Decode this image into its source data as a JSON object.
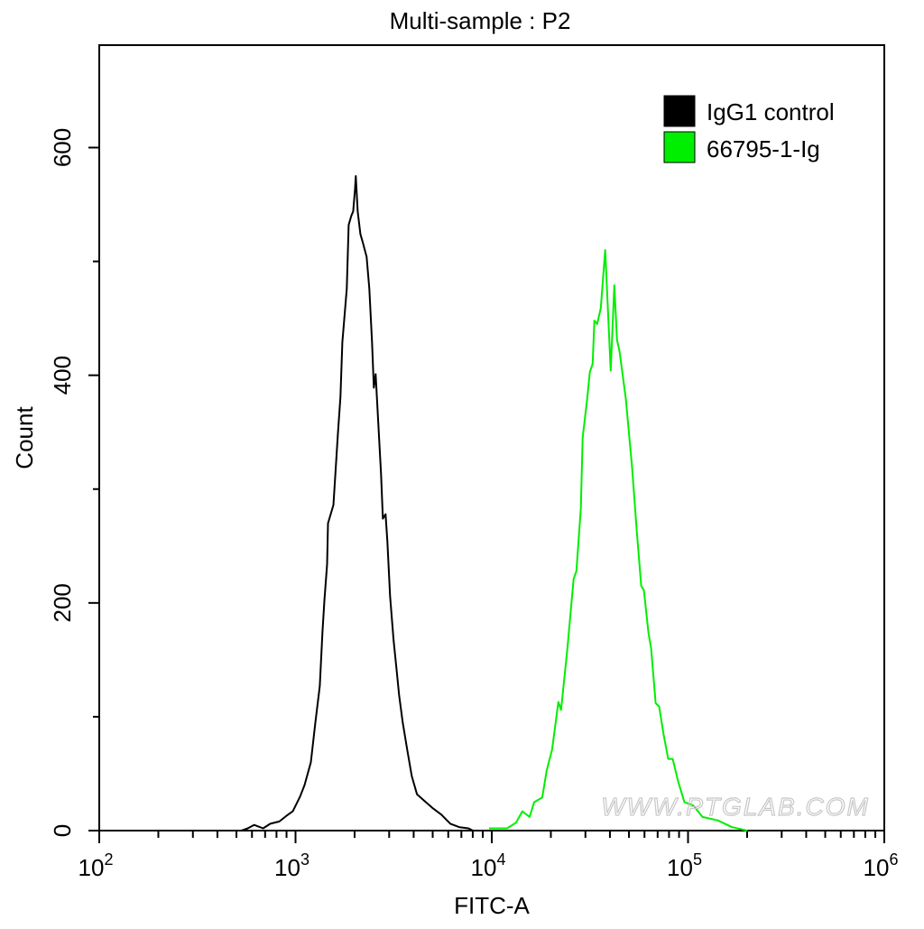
{
  "chart_data": {
    "type": "line",
    "title": "Multi-sample : P2",
    "xlabel": "FITC-A",
    "ylabel": "Count",
    "xscale": "log",
    "xlim": [
      100,
      1000000
    ],
    "ylim": [
      0,
      690
    ],
    "x_ticks": [
      {
        "base": "10",
        "exp": "2",
        "value": 100
      },
      {
        "base": "10",
        "exp": "3",
        "value": 1000
      },
      {
        "base": "10",
        "exp": "4",
        "value": 10000
      },
      {
        "base": "10",
        "exp": "5",
        "value": 100000
      },
      {
        "base": "10",
        "exp": "6",
        "value": 1000000
      }
    ],
    "y_ticks": [
      {
        "label": "0",
        "value": 0
      },
      {
        "label": "200",
        "value": 200
      },
      {
        "label": "400",
        "value": 400
      },
      {
        "label": "600",
        "value": 600
      }
    ],
    "grid": false,
    "legend_position": "top-right",
    "watermark": "WWW.PTGLAB.COM",
    "series": [
      {
        "name": "IgG1 control",
        "color": "#000000",
        "x": [
          531,
          571,
          615,
          684,
          744,
          827,
          900,
          969,
          1055,
          1112,
          1197,
          1262,
          1330,
          1373,
          1403,
          1449,
          1464,
          1560,
          1644,
          1695,
          1733,
          1825,
          1865,
          1923,
          1966,
          2009,
          2029,
          2074,
          2140,
          2208,
          2303,
          2377,
          2454,
          2506,
          2560,
          2643,
          2728,
          2787,
          2877,
          2938,
          3033,
          3162,
          3265,
          3370,
          3516,
          3707,
          3908,
          4159,
          4478,
          4977,
          5533,
          6151,
          6838,
          7600,
          8017
        ],
        "y": [
          0,
          2,
          5,
          2,
          6,
          8,
          13,
          17,
          30,
          40,
          60,
          95,
          127,
          175,
          202,
          234,
          270,
          286,
          349,
          381,
          429,
          476,
          532,
          540,
          544,
          563,
          575,
          544,
          524,
          516,
          504,
          476,
          429,
          389,
          401,
          357,
          313,
          274,
          278,
          254,
          206,
          167,
          143,
          119,
          95,
          71,
          48,
          32,
          27,
          20,
          14,
          6,
          3,
          2,
          0
        ]
      },
      {
        "name": "66795-1-Ig",
        "color": "#00ee00",
        "x": [
          9690,
          11970,
          13300,
          14320,
          15590,
          16440,
          18080,
          19050,
          20290,
          21840,
          22540,
          24270,
          26120,
          26980,
          28440,
          29040,
          30620,
          31620,
          32650,
          33340,
          34420,
          35910,
          37840,
          39080,
          40360,
          42100,
          43460,
          44790,
          48210,
          51940,
          54780,
          57720,
          59570,
          62810,
          64860,
          68390,
          71290,
          75170,
          79260,
          83570,
          89060,
          95900,
          106600,
          118400,
          141600,
          167700,
          200700
        ],
        "y": [
          2,
          2,
          7,
          17,
          12,
          25,
          29,
          53,
          71,
          113,
          106,
          160,
          221,
          228,
          283,
          345,
          379,
          403,
          410,
          448,
          445,
          459,
          510,
          456,
          404,
          479,
          431,
          421,
          379,
          318,
          263,
          215,
          211,
          174,
          160,
          112,
          109,
          84,
          63,
          63,
          43,
          25,
          22,
          12,
          9,
          3,
          0
        ]
      }
    ]
  }
}
